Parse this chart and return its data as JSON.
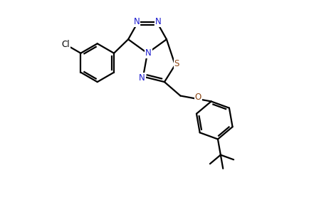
{
  "bg_color": "#ffffff",
  "bond_color": "#000000",
  "atom_colors": {
    "N": "#1a1acd",
    "S": "#8B4513",
    "Cl": "#000000",
    "O": "#8B4513",
    "C": "#000000"
  },
  "line_width": 1.6,
  "figsize": [
    4.35,
    3.02
  ],
  "dpi": 100
}
